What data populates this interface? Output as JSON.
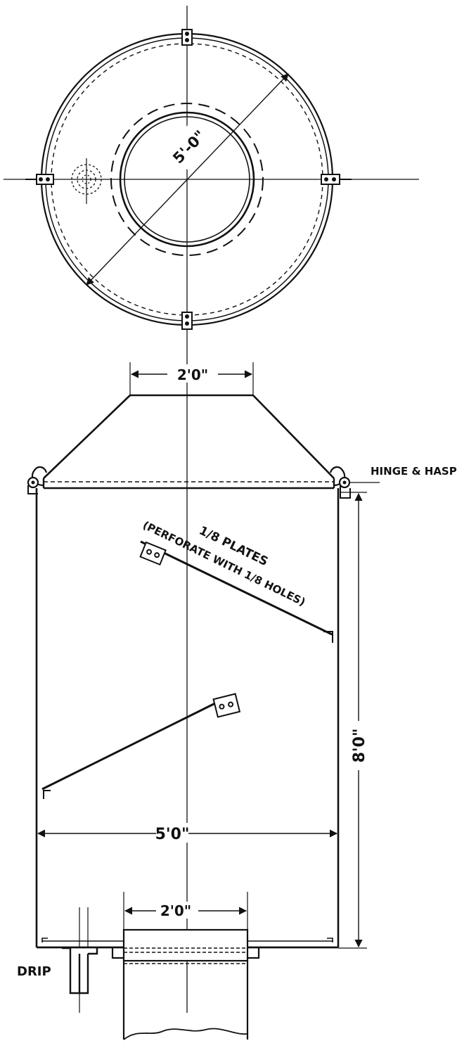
{
  "plan_view": {
    "diameter_label": "5'-0\""
  },
  "elevation": {
    "top_opening_label": "2'0\"",
    "hinge_label": "HINGE & HASP",
    "plate_label_line1": "1/8 PLATES",
    "plate_label_line2": "(PERFORATE WITH 1/8 HOLES)",
    "height_label": "8'0\"",
    "width_label": "5'0\"",
    "bottom_opening_label": "2'0\"",
    "drip_label": "DRIP"
  },
  "colors": {
    "ink": "#111111",
    "paper": "#ffffff"
  }
}
